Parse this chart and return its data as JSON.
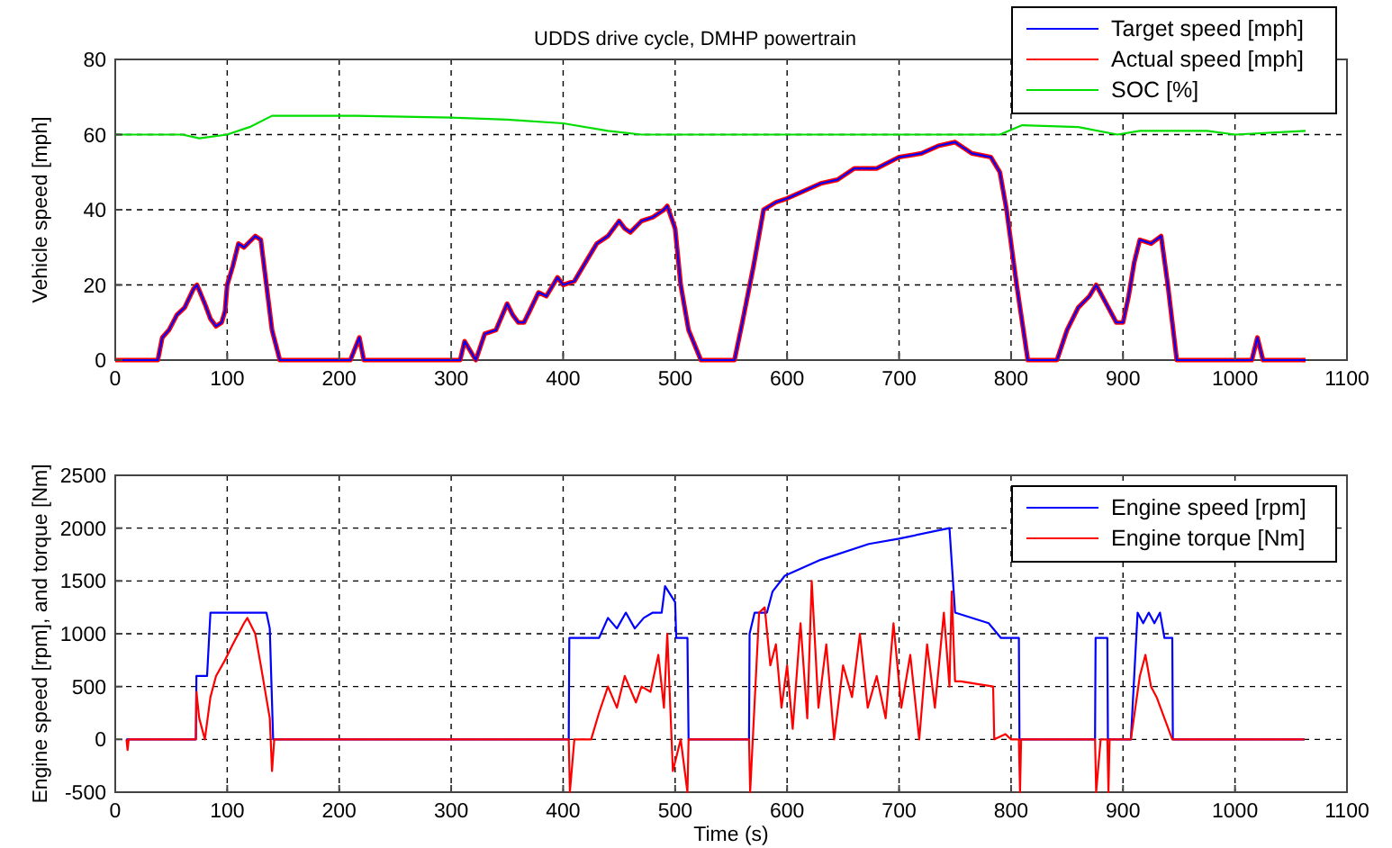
{
  "chart_data": [
    {
      "type": "line",
      "title": "UDDS drive cycle, DMHP powertrain",
      "ylabel": "Vehicle speed [mph]",
      "xlim": [
        0,
        1100
      ],
      "xticks": [
        0,
        100,
        200,
        300,
        400,
        500,
        600,
        700,
        800,
        900,
        1000,
        1100
      ],
      "ylim": [
        0,
        80
      ],
      "yticks": [
        0,
        20,
        40,
        60,
        80
      ],
      "grid": true,
      "legend": "top right",
      "line_style": "solid",
      "marker": "none",
      "series": [
        {
          "name": "Target speed [mph]",
          "color": "#0000ff",
          "x": [
            0,
            38,
            42,
            48,
            55,
            62,
            70,
            73,
            80,
            85,
            90,
            95,
            98,
            100,
            105,
            110,
            115,
            125,
            130,
            135,
            140,
            147,
            210,
            214,
            218,
            222,
            300,
            308,
            312,
            316,
            322,
            330,
            340,
            350,
            355,
            360,
            365,
            370,
            378,
            385,
            395,
            400,
            410,
            420,
            430,
            440,
            450,
            455,
            460,
            470,
            480,
            490,
            493,
            500,
            505,
            512,
            523,
            553,
            560,
            570,
            579,
            590,
            600,
            615,
            630,
            645,
            660,
            680,
            700,
            720,
            735,
            750,
            765,
            782,
            790,
            796,
            805,
            815,
            841,
            850,
            860,
            870,
            876,
            885,
            894,
            900,
            905,
            910,
            915,
            925,
            934,
            940,
            948,
            1015,
            1020,
            1025,
            1063
          ],
          "values": [
            0,
            0,
            6,
            8,
            12,
            14,
            19,
            20,
            15,
            11,
            9,
            10,
            13,
            20,
            25,
            31,
            30,
            33,
            32,
            20,
            8,
            0,
            0,
            3,
            6,
            0,
            0,
            0,
            5,
            3,
            0,
            7,
            8,
            15,
            12,
            10,
            10,
            13,
            18,
            17,
            22,
            20,
            21,
            26,
            31,
            33,
            37,
            35,
            34,
            37,
            38,
            40,
            41,
            35,
            20,
            8,
            0,
            0,
            10,
            25,
            40,
            42,
            43,
            45,
            47,
            48,
            51,
            51,
            54,
            55,
            57,
            58,
            55,
            54,
            50,
            40,
            20,
            0,
            0,
            8,
            14,
            17,
            20,
            15,
            10,
            10,
            17,
            26,
            32,
            31,
            33,
            20,
            0,
            0,
            6,
            0,
            0
          ]
        },
        {
          "name": "Actual speed [mph]",
          "color": "#ff0000",
          "x": [
            0,
            38,
            42,
            48,
            55,
            62,
            70,
            73,
            80,
            85,
            90,
            95,
            98,
            100,
            105,
            110,
            115,
            125,
            130,
            135,
            140,
            147,
            210,
            214,
            218,
            222,
            300,
            308,
            312,
            316,
            322,
            330,
            340,
            350,
            355,
            360,
            365,
            370,
            378,
            385,
            395,
            400,
            410,
            420,
            430,
            440,
            450,
            455,
            460,
            470,
            480,
            490,
            493,
            500,
            505,
            512,
            523,
            553,
            560,
            570,
            579,
            590,
            600,
            615,
            630,
            645,
            660,
            680,
            700,
            720,
            735,
            750,
            765,
            782,
            790,
            796,
            805,
            815,
            841,
            850,
            860,
            870,
            876,
            885,
            894,
            900,
            905,
            910,
            915,
            925,
            934,
            940,
            948,
            1015,
            1020,
            1025,
            1063
          ],
          "values": [
            0,
            0,
            6,
            8,
            12,
            14,
            19,
            20,
            15,
            11,
            9,
            10,
            13,
            20,
            25,
            31,
            30,
            33,
            32,
            20,
            8,
            0,
            0,
            3,
            6,
            0,
            0,
            0,
            5,
            3,
            0,
            7,
            8,
            15,
            12,
            10,
            10,
            13,
            18,
            17,
            22,
            20,
            21,
            26,
            31,
            33,
            37,
            35,
            34,
            37,
            38,
            40,
            41,
            35,
            20,
            8,
            0,
            0,
            10,
            25,
            40,
            42,
            43,
            45,
            47,
            48,
            51,
            51,
            54,
            55,
            57,
            58,
            55,
            54,
            50,
            40,
            20,
            0,
            0,
            8,
            14,
            17,
            20,
            15,
            10,
            10,
            17,
            26,
            32,
            31,
            33,
            20,
            0,
            0,
            6,
            0,
            0
          ]
        },
        {
          "name": "SOC [%]",
          "color": "#00dd00",
          "x": [
            0,
            60,
            75,
            100,
            120,
            140,
            215,
            300,
            350,
            400,
            440,
            470,
            550,
            600,
            700,
            790,
            810,
            860,
            895,
            915,
            975,
            1000,
            1063
          ],
          "values": [
            60,
            60,
            59,
            60,
            62,
            65,
            65,
            64.5,
            64,
            63,
            61,
            60,
            60,
            60,
            60,
            60,
            62.5,
            62,
            60,
            61,
            61,
            60,
            61
          ]
        }
      ]
    },
    {
      "type": "line",
      "xlabel": "Time (s)",
      "ylabel": "Engine speed [rpm], and torque [Nm]",
      "xlim": [
        0,
        1100
      ],
      "xticks": [
        0,
        100,
        200,
        300,
        400,
        500,
        600,
        700,
        800,
        900,
        1000,
        1100
      ],
      "ylim": [
        -500,
        2500
      ],
      "yticks": [
        -500,
        0,
        500,
        1000,
        1500,
        2000,
        2500
      ],
      "grid": true,
      "legend": "top right",
      "line_style": "solid",
      "marker": "none",
      "series": [
        {
          "name": "Engine speed [rpm]",
          "color": "#0000ff",
          "x": [
            10,
            72,
            72.5,
            82,
            85,
            135,
            138,
            141,
            405,
            405.5,
            432,
            440,
            448,
            456,
            464,
            472,
            480,
            488,
            491,
            500,
            501,
            511,
            512,
            566,
            566.5,
            571,
            582,
            587,
            598,
            630,
            673,
            700,
            745,
            750,
            780,
            791,
            807,
            807.5,
            875,
            875.5,
            886,
            886.5,
            907,
            913,
            918,
            923,
            928,
            933,
            937,
            944,
            944.5,
            1062
          ],
          "values": [
            0,
            0,
            600,
            600,
            1200,
            1200,
            1050,
            0,
            0,
            960,
            960,
            1150,
            1050,
            1200,
            1050,
            1150,
            1200,
            1200,
            1450,
            1300,
            960,
            960,
            0,
            0,
            1000,
            1200,
            1200,
            1400,
            1550,
            1700,
            1850,
            1900,
            2000,
            1200,
            1100,
            960,
            960,
            0,
            0,
            960,
            960,
            0,
            0,
            1200,
            1100,
            1200,
            1100,
            1200,
            960,
            960,
            0,
            0
          ]
        },
        {
          "name": "Engine torque [Nm]",
          "color": "#ff0000",
          "x": [
            10,
            11,
            12,
            72,
            72.5,
            75,
            80,
            85,
            90,
            98,
            105,
            115,
            118,
            125,
            130,
            138,
            140,
            142,
            405,
            406,
            410,
            425,
            432,
            440,
            448,
            455,
            465,
            470,
            478,
            485,
            490,
            493,
            498,
            505,
            511,
            512,
            566,
            567,
            575,
            580,
            585,
            590,
            595,
            600,
            605,
            612,
            618,
            622,
            628,
            635,
            642,
            650,
            658,
            665,
            672,
            680,
            688,
            695,
            702,
            710,
            718,
            725,
            732,
            740,
            745,
            747,
            750,
            755,
            784,
            785,
            795,
            800,
            807,
            808,
            809,
            875,
            876,
            880,
            886,
            887,
            888,
            907,
            915,
            920,
            925,
            930,
            937,
            944,
            1062
          ],
          "values": [
            0,
            -100,
            0,
            0,
            450,
            200,
            0,
            400,
            600,
            750,
            900,
            1100,
            1150,
            1000,
            700,
            200,
            -300,
            0,
            0,
            -500,
            0,
            0,
            250,
            500,
            300,
            600,
            350,
            500,
            450,
            800,
            300,
            1000,
            -300,
            0,
            -500,
            0,
            0,
            -500,
            1200,
            1250,
            700,
            900,
            300,
            700,
            100,
            1100,
            200,
            1500,
            300,
            900,
            0,
            700,
            400,
            1000,
            300,
            600,
            200,
            1100,
            300,
            800,
            0,
            900,
            300,
            1200,
            500,
            1400,
            550,
            550,
            500,
            0,
            50,
            0,
            0,
            -500,
            0,
            0,
            -500,
            0,
            0,
            -500,
            0,
            0,
            600,
            800,
            500,
            400,
            200,
            0,
            0
          ]
        }
      ]
    }
  ]
}
